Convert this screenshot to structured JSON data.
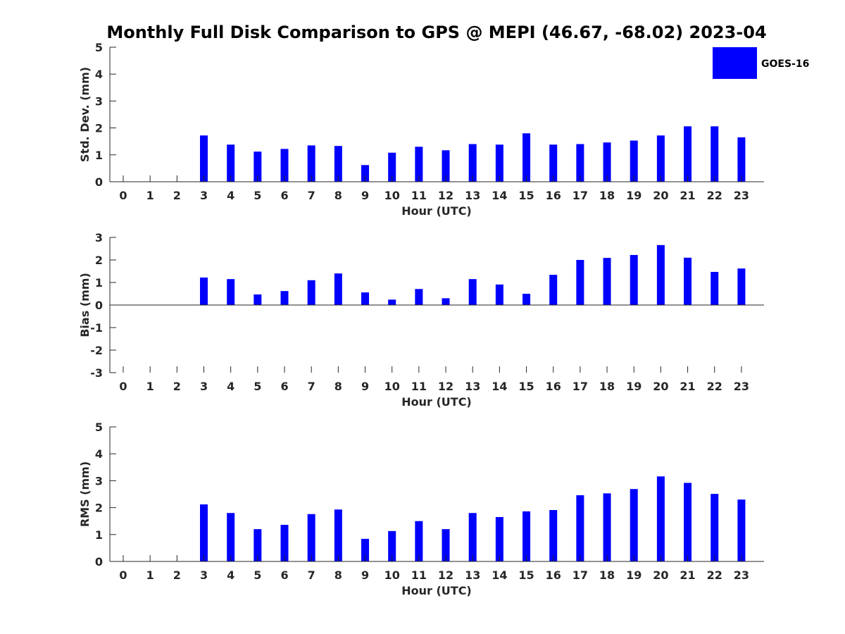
{
  "title": "Monthly Full Disk Comparison to GPS @ MEPI (46.67, -68.02) 2023-04",
  "legend": {
    "label": "GOES-16",
    "color": "#0000ff"
  },
  "chart_data": [
    {
      "type": "bar",
      "name": "std-dev",
      "categories": [
        "0",
        "1",
        "2",
        "3",
        "4",
        "5",
        "6",
        "7",
        "8",
        "9",
        "10",
        "11",
        "12",
        "13",
        "14",
        "15",
        "16",
        "17",
        "18",
        "19",
        "20",
        "21",
        "22",
        "23"
      ],
      "series": [
        {
          "name": "GOES-16",
          "values": [
            null,
            null,
            null,
            1.72,
            1.38,
            1.12,
            1.22,
            1.35,
            1.33,
            0.62,
            1.08,
            1.3,
            1.17,
            1.4,
            1.38,
            1.8,
            1.38,
            1.4,
            1.46,
            1.53,
            1.72,
            2.06,
            2.06,
            1.65
          ]
        }
      ],
      "xlabel": "Hour (UTC)",
      "ylabel": "Std. Dev. (mm)",
      "ylim": [
        0,
        5
      ],
      "yticks": [
        "0",
        "1",
        "2",
        "3",
        "4",
        "5"
      ],
      "bar_color": "#0000ff"
    },
    {
      "type": "bar",
      "name": "bias",
      "categories": [
        "0",
        "1",
        "2",
        "3",
        "4",
        "5",
        "6",
        "7",
        "8",
        "9",
        "10",
        "11",
        "12",
        "13",
        "14",
        "15",
        "16",
        "17",
        "18",
        "19",
        "20",
        "21",
        "22",
        "23"
      ],
      "series": [
        {
          "name": "GOES-16",
          "values": [
            null,
            null,
            null,
            1.22,
            1.15,
            0.47,
            0.62,
            1.1,
            1.4,
            0.56,
            0.24,
            0.71,
            0.3,
            1.15,
            0.91,
            0.5,
            1.34,
            2.0,
            2.09,
            2.22,
            2.66,
            2.1,
            1.47,
            1.62
          ]
        }
      ],
      "xlabel": "Hour (UTC)",
      "ylabel": "Bias (mm)",
      "ylim": [
        -3,
        3
      ],
      "yticks": [
        "-3",
        "-2",
        "-1",
        "0",
        "1",
        "2",
        "3"
      ],
      "bar_color": "#0000ff"
    },
    {
      "type": "bar",
      "name": "rms",
      "categories": [
        "0",
        "1",
        "2",
        "3",
        "4",
        "5",
        "6",
        "7",
        "8",
        "9",
        "10",
        "11",
        "12",
        "13",
        "14",
        "15",
        "16",
        "17",
        "18",
        "19",
        "20",
        "21",
        "22",
        "23"
      ],
      "series": [
        {
          "name": "GOES-16",
          "values": [
            null,
            null,
            null,
            2.12,
            1.8,
            1.2,
            1.36,
            1.76,
            1.93,
            0.84,
            1.13,
            1.5,
            1.2,
            1.8,
            1.65,
            1.86,
            1.91,
            2.46,
            2.53,
            2.69,
            3.16,
            2.92,
            2.51,
            2.3
          ]
        }
      ],
      "xlabel": "Hour (UTC)",
      "ylabel": "RMS (mm)",
      "ylim": [
        0,
        5
      ],
      "yticks": [
        "0",
        "1",
        "2",
        "3",
        "4",
        "5"
      ],
      "bar_color": "#0000ff"
    }
  ]
}
